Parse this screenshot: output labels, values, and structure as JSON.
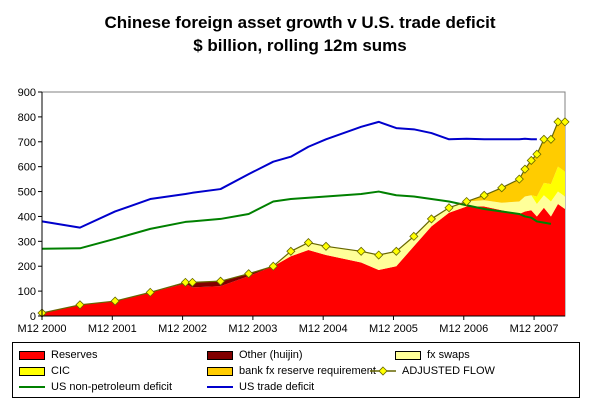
{
  "chart_data": {
    "type": "area",
    "title": "Chinese foreign asset growth v U.S. trade deficit",
    "subtitle": "$ billion, rolling 12m sums",
    "ylim": [
      0,
      900
    ],
    "yticks": [
      0,
      100,
      200,
      300,
      400,
      500,
      600,
      700,
      800,
      900
    ],
    "xtick_labels": [
      "M12 2000",
      "M12 2001",
      "M12 2002",
      "M12 2003",
      "M12 2004",
      "M12 2005",
      "M12 2006",
      "M12 2007"
    ],
    "xtick_positions": [
      2000.96,
      2001.96,
      2002.96,
      2003.96,
      2004.96,
      2005.96,
      2006.96,
      2007.96
    ],
    "xlim": [
      2000.96,
      2008.4
    ],
    "grid": false,
    "legend_position": "bottom",
    "colors": {
      "Reserves": "#ff0000",
      "Other (huijin)": "#800000",
      "fx swaps": "#ffff99",
      "CIC": "#ffff00",
      "bank fx reserve requirement": "#ffcc00",
      "ADJUSTED FLOW": "#666600",
      "ADJUSTED FLOW marker": "#ffff00",
      "US non-petroleum deficit": "#008000",
      "US trade deficit": "#0000cc"
    },
    "stack_order": [
      "Reserves",
      "Other (huijin)",
      "fx swaps",
      "CIC",
      "bank fx reserve requirement"
    ],
    "x": [
      2000.96,
      2001.5,
      2002.0,
      2002.5,
      2003.0,
      2003.1,
      2003.5,
      2003.9,
      2004.25,
      2004.5,
      2004.75,
      2005.0,
      2005.5,
      2005.75,
      2006.0,
      2006.25,
      2006.5,
      2006.75,
      2007.0,
      2007.25,
      2007.5,
      2007.75,
      2007.83,
      2007.92,
      2008.0,
      2008.1,
      2008.2,
      2008.3,
      2008.4
    ],
    "series": [
      {
        "name": "Reserves",
        "kind": "stacked-area",
        "values": [
          12,
          45,
          60,
          95,
          130,
          115,
          120,
          160,
          200,
          240,
          265,
          245,
          215,
          185,
          200,
          280,
          360,
          415,
          440,
          440,
          425,
          410,
          420,
          425,
          400,
          435,
          400,
          450,
          430
        ]
      },
      {
        "name": "Other (huijin)",
        "kind": "stacked-area",
        "values": [
          0,
          0,
          0,
          0,
          5,
          20,
          20,
          10,
          0,
          0,
          0,
          0,
          0,
          0,
          0,
          0,
          0,
          0,
          0,
          0,
          0,
          0,
          0,
          0,
          0,
          0,
          0,
          0,
          0
        ]
      },
      {
        "name": "fx swaps",
        "kind": "stacked-area",
        "values": [
          0,
          0,
          0,
          0,
          0,
          0,
          0,
          0,
          0,
          20,
          30,
          35,
          45,
          60,
          60,
          40,
          30,
          20,
          20,
          25,
          30,
          50,
          60,
          60,
          50,
          50,
          60,
          50,
          50
        ]
      },
      {
        "name": "CIC",
        "kind": "stacked-area",
        "values": [
          0,
          0,
          0,
          0,
          0,
          0,
          0,
          0,
          0,
          0,
          0,
          0,
          0,
          0,
          0,
          0,
          0,
          0,
          0,
          0,
          0,
          0,
          0,
          0,
          30,
          50,
          70,
          100,
          100
        ]
      },
      {
        "name": "bank fx reserve requirement",
        "kind": "stacked-area",
        "values": [
          0,
          0,
          0,
          0,
          0,
          0,
          0,
          0,
          0,
          0,
          0,
          0,
          0,
          0,
          0,
          0,
          0,
          0,
          0,
          20,
          60,
          90,
          110,
          140,
          170,
          175,
          180,
          180,
          200
        ]
      },
      {
        "name": "ADJUSTED FLOW",
        "kind": "line-markers",
        "values": [
          12,
          45,
          60,
          95,
          135,
          135,
          140,
          170,
          200,
          260,
          295,
          280,
          260,
          245,
          260,
          320,
          390,
          435,
          460,
          485,
          515,
          550,
          590,
          625,
          650,
          710,
          710,
          780,
          780
        ]
      },
      {
        "name": "US non-petroleum deficit",
        "kind": "line",
        "values": [
          270,
          272,
          310,
          350,
          378,
          380,
          390,
          410,
          460,
          470,
          475,
          480,
          490,
          500,
          485,
          480,
          470,
          460,
          445,
          430,
          420,
          410,
          400,
          395,
          380,
          375,
          370,
          null,
          null
        ]
      },
      {
        "name": "US trade deficit",
        "kind": "line",
        "values": [
          380,
          355,
          420,
          470,
          490,
          495,
          510,
          570,
          620,
          640,
          680,
          710,
          760,
          780,
          755,
          750,
          735,
          710,
          712,
          710,
          710,
          710,
          712,
          710,
          710,
          null,
          null,
          null,
          null
        ]
      }
    ]
  }
}
